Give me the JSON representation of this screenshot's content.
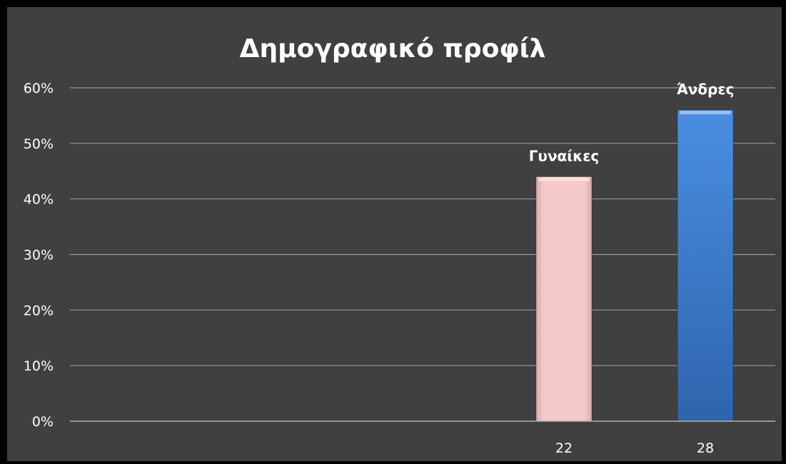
{
  "chart_data": {
    "type": "bar",
    "title": "Δημογραφικό προφίλ",
    "xlabel": "",
    "ylabel": "",
    "categories": [
      "22",
      "28"
    ],
    "values": [
      0.44,
      0.56
    ],
    "data_labels": [
      "Γυναίκες",
      "Άνδρες"
    ],
    "bar_colors": [
      "#f2c4c4",
      "#3d7fd1"
    ],
    "ylim": [
      0,
      0.6
    ],
    "yticks": [
      0,
      0.1,
      0.2,
      0.3,
      0.4,
      0.5,
      0.6
    ],
    "ytick_labels": [
      "0%",
      "10%",
      "20%",
      "30%",
      "40%",
      "50%",
      "60%"
    ],
    "grid": true,
    "legend": "none"
  },
  "colors": {
    "background": "#000000",
    "plot_area": "#404040",
    "gridline": "#9a9a9a",
    "text": "#ffffff"
  }
}
